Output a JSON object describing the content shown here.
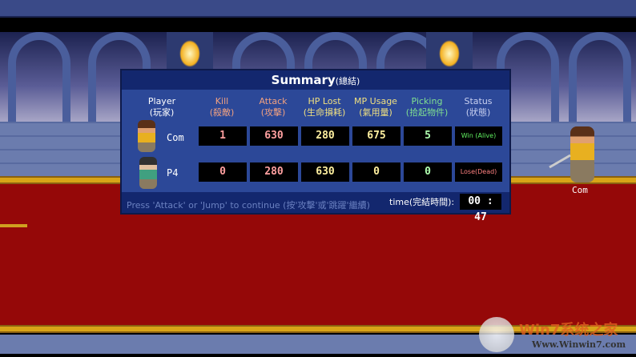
{
  "summary": {
    "title": "Summary",
    "title_cn": "(總結)",
    "headers": [
      {
        "en": "Player",
        "cn": "(玩家)",
        "color": "#ffffff"
      },
      {
        "en": "Kill",
        "cn": "(殺敵)",
        "color": "#f0a080"
      },
      {
        "en": "Attack",
        "cn": "(攻擊)",
        "color": "#f0a080"
      },
      {
        "en": "HP Lost",
        "cn": "(生命損耗)",
        "color": "#f0e080"
      },
      {
        "en": "MP Usage",
        "cn": "(氣用量)",
        "color": "#f0e080"
      },
      {
        "en": "Picking",
        "cn": "(拾起物件)",
        "color": "#80e090"
      },
      {
        "en": "Status",
        "cn": "(狀態)",
        "color": "#c8d0f0"
      }
    ],
    "rows": [
      {
        "player": "Com",
        "kill": "1",
        "attack": "630",
        "hp_lost": "280",
        "mp_usage": "675",
        "picking": "5",
        "status": "Win (Alive)",
        "status_color": "#60f060"
      },
      {
        "player": "P4",
        "kill": "0",
        "attack": "280",
        "hp_lost": "630",
        "mp_usage": "0",
        "picking": "0",
        "status": "Lose(Dead)",
        "status_color": "#ff8080"
      }
    ],
    "continue_text": "Press 'Attack' or 'Jump' to continue  (按'攻擊'或'跳躍'繼續)",
    "time_label": "time(完結時間):",
    "time_value": "00 : 47"
  },
  "stage": {
    "character_label": "Com"
  },
  "watermark": {
    "logo": "Win7系统之家",
    "url": "Www.Winwin7.com"
  }
}
